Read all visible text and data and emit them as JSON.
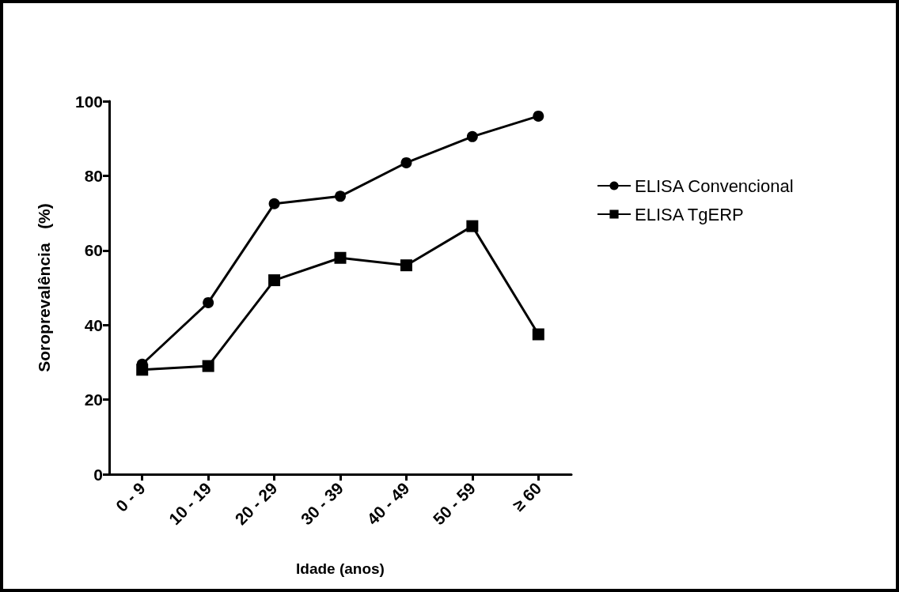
{
  "chart_data": {
    "type": "line",
    "xlabel": "Idade (anos)",
    "ylabel": "Soroprevalência   (%)",
    "categories": [
      "0 - 9",
      "10 - 19",
      "20 - 29",
      "30 - 39",
      "40 - 49",
      "50 - 59",
      "≥ 60"
    ],
    "series": [
      {
        "name": "ELISA Convencional",
        "color": "#000000",
        "marker": "circle",
        "values": [
          29.5,
          46,
          72.5,
          74.5,
          83.5,
          90.5,
          96
        ]
      },
      {
        "name": "ELISA TgERP",
        "color": "#000000",
        "marker": "square",
        "values": [
          28,
          29,
          52,
          58,
          56,
          66.5,
          37.5
        ]
      }
    ],
    "ylim": [
      0,
      100
    ],
    "yticks": [
      0,
      20,
      40,
      60,
      80,
      100
    ],
    "grid": false,
    "legend": "right",
    "line_style": "solid"
  }
}
